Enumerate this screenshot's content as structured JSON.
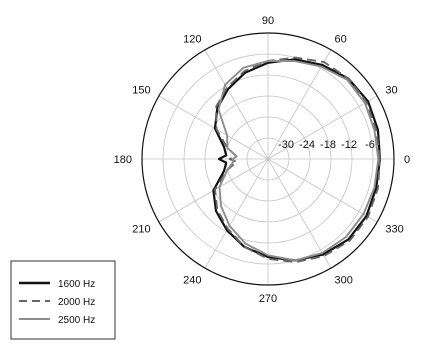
{
  "chart_data": {
    "type": "line",
    "projection": "polar",
    "title": "",
    "angle_unit": "degrees",
    "angle_ticks": [
      0,
      30,
      60,
      90,
      120,
      150,
      180,
      210,
      240,
      270,
      300,
      330
    ],
    "angle_tick_labels": [
      "0",
      "30",
      "60",
      "90",
      "120",
      "150",
      "180",
      "210",
      "240",
      "270",
      "300",
      "330"
    ],
    "radial_range": [
      -36,
      0
    ],
    "radial_ticks": [
      -30,
      -24,
      -18,
      -12,
      -6
    ],
    "radial_tick_labels": [
      "-30",
      "-24",
      "-18",
      "-12",
      "-6"
    ],
    "grid": true,
    "legend_position": "bottom-left",
    "theta": [
      0,
      15,
      30,
      45,
      60,
      75,
      90,
      105,
      120,
      135,
      150,
      165,
      175,
      180,
      185,
      195,
      210,
      225,
      240,
      255,
      270,
      285,
      300,
      315,
      330,
      345
    ],
    "series": [
      {
        "name": "1600 Hz",
        "color": "#111111",
        "dash": "solid",
        "values": [
          -4.0,
          -3.5,
          -3.0,
          -3.5,
          -5.0,
          -6.5,
          -8.5,
          -10.5,
          -13.0,
          -15.5,
          -18.5,
          -23.0,
          -24.0,
          -22.0,
          -24.0,
          -23.0,
          -18.0,
          -15.0,
          -12.5,
          -10.0,
          -8.0,
          -6.0,
          -4.5,
          -3.5,
          -3.5,
          -4.0
        ]
      },
      {
        "name": "2000 Hz",
        "color": "#666666",
        "dash": "dashed",
        "values": [
          -4.0,
          -4.0,
          -3.5,
          -3.5,
          -4.0,
          -6.0,
          -8.0,
          -10.0,
          -12.5,
          -15.0,
          -19.0,
          -24.0,
          -27.0,
          -25.0,
          -27.0,
          -24.0,
          -18.5,
          -15.5,
          -13.0,
          -10.0,
          -7.5,
          -5.5,
          -4.0,
          -3.0,
          -3.0,
          -3.5
        ]
      },
      {
        "name": "2500 Hz",
        "color": "#8c8c8c",
        "dash": "solid",
        "values": [
          -4.5,
          -4.5,
          -4.0,
          -4.0,
          -5.5,
          -7.0,
          -8.0,
          -9.0,
          -11.5,
          -16.0,
          -22.5,
          -24.0,
          -27.0,
          -26.0,
          -26.0,
          -24.0,
          -20.0,
          -17.0,
          -14.0,
          -11.0,
          -8.5,
          -6.0,
          -5.0,
          -4.5,
          -4.5,
          -4.5
        ]
      }
    ]
  }
}
